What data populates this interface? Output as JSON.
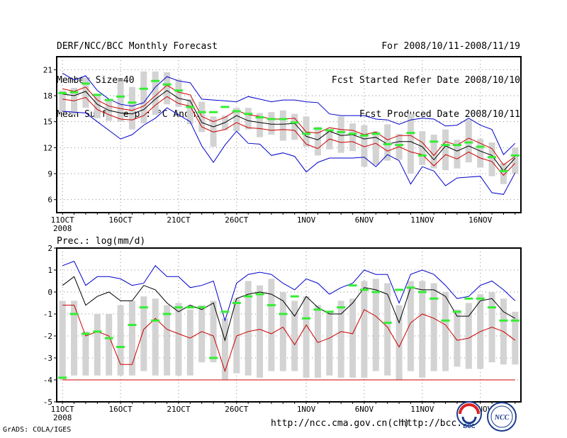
{
  "header": {
    "left": [
      "DERF/NCC/BCC Monthly Forecast",
      "Member Size=40",
      "Mean Surf. Temp.: °C Anom."
    ],
    "right": [
      "For 2008/10/11-2008/11/19",
      "Fcst Started Refer Date 2008/10/10",
      "Fcst Produced Date 2008/10/11"
    ]
  },
  "footer": {
    "grads": "GrADS: COLA/IGES",
    "url1": "http://ncc.cma.gov.cn(ch)",
    "url2": "http://bcc.c"
  },
  "logos": {
    "bcc": "BCC",
    "ncc": "NCC"
  },
  "colors": {
    "max": "#0000cc",
    "min": "#cc0000",
    "mean": "#000000",
    "obs": "#33ee33",
    "box": "#d3d3d3"
  },
  "chart_data": [
    {
      "type": "line",
      "title": "Mean Surf. Temp.: °C Anom.",
      "x_tick_labels": [
        "11OCT",
        "16OCT",
        "21OCT",
        "26OCT",
        "1NOV",
        "6NOV",
        "11NOV",
        "16NOV"
      ],
      "x_year_label": "2008",
      "y_ticks": [
        6,
        9,
        12,
        15,
        18,
        21
      ],
      "ylim": [
        4.5,
        22.5
      ],
      "days": 40,
      "series": [
        {
          "name": "max",
          "values": [
            20.6,
            19.8,
            20.3,
            18.6,
            17.6,
            17.0,
            16.8,
            17.2,
            19.0,
            20.2,
            19.7,
            19.5,
            17.6,
            17.5,
            17.4,
            17.3,
            17.9,
            17.6,
            17.3,
            17.5,
            17.5,
            17.3,
            17.2,
            15.9,
            15.7,
            15.7,
            15.7,
            15.3,
            15.2,
            14.7,
            15.2,
            15.4,
            15.3,
            14.5,
            14.6,
            15.4,
            14.6,
            14.1,
            11.2,
            12.5
          ]
        },
        {
          "name": "upper",
          "values": [
            18.8,
            18.5,
            19.0,
            17.5,
            16.8,
            16.5,
            16.3,
            16.8,
            18.0,
            19.2,
            18.4,
            18.1,
            15.6,
            15.0,
            15.5,
            16.3,
            15.8,
            15.6,
            15.3,
            15.3,
            15.4,
            13.8,
            13.7,
            14.3,
            14.1,
            14.0,
            13.5,
            13.8,
            12.9,
            13.4,
            13.4,
            12.6,
            11.1,
            12.7,
            12.3,
            13.1,
            12.5,
            11.9,
            10.0,
            11.0
          ]
        },
        {
          "name": "mean",
          "values": [
            18.2,
            18.0,
            18.5,
            17.0,
            16.3,
            16.0,
            15.9,
            16.4,
            17.6,
            18.6,
            17.7,
            17.4,
            14.9,
            14.4,
            14.9,
            15.7,
            15.1,
            14.9,
            14.7,
            14.7,
            14.8,
            13.3,
            12.9,
            13.9,
            13.4,
            13.5,
            13.0,
            13.2,
            12.4,
            12.7,
            12.7,
            12.1,
            10.6,
            12.2,
            11.6,
            12.2,
            11.6,
            11.1,
            9.3,
            10.8
          ]
        },
        {
          "name": "lower",
          "values": [
            17.6,
            17.4,
            17.8,
            16.4,
            15.8,
            15.3,
            15.2,
            15.7,
            16.9,
            17.9,
            17.1,
            16.8,
            14.4,
            13.8,
            14.1,
            14.9,
            14.3,
            14.2,
            14.0,
            14.1,
            14.0,
            12.4,
            11.9,
            13.0,
            12.6,
            12.7,
            12.1,
            12.5,
            11.6,
            12.1,
            11.5,
            11.2,
            9.9,
            11.2,
            10.7,
            11.5,
            10.8,
            10.4,
            8.8,
            10.2
          ]
        },
        {
          "name": "min",
          "values": [
            16.2,
            16.1,
            16.0,
            15.0,
            14.0,
            13.0,
            13.5,
            14.6,
            15.4,
            16.6,
            15.8,
            15.0,
            12.2,
            10.3,
            12.3,
            13.9,
            12.5,
            12.4,
            11.1,
            11.4,
            11.0,
            9.2,
            10.3,
            10.8,
            10.8,
            10.8,
            10.9,
            9.8,
            11.2,
            10.5,
            7.8,
            9.8,
            9.3,
            7.6,
            8.5,
            8.6,
            8.7,
            6.8,
            6.6,
            9.1
          ]
        },
        {
          "name": "obs",
          "values": [
            18.3,
            18.4,
            19.4,
            18.1,
            17.5,
            17.9,
            17.2,
            18.8,
            19.7,
            19.3,
            18.6,
            16.7,
            16.1,
            16.1,
            16.7,
            16.2,
            15.9,
            15.5,
            15.3,
            15.3,
            14.9,
            13.6,
            14.2,
            14.0,
            13.8,
            13.6,
            13.4,
            13.6,
            12.4,
            12.3,
            13.7,
            11.1,
            12.7,
            12.3,
            12.3,
            12.6,
            12.1,
            10.9,
            9.3,
            11.1
          ]
        },
        {
          "name": "box_top",
          "values": [
            18.6,
            18.9,
            20.1,
            18.2,
            17.5,
            19.7,
            19.0,
            20.8,
            20.8,
            20.7,
            19.9,
            17.6,
            17.3,
            15.6,
            15.7,
            16.6,
            16.6,
            16.0,
            16.1,
            16.3,
            15.9,
            15.6,
            14.4,
            14.1,
            15.6,
            14.8,
            14.6,
            13.9,
            14.7,
            13.6,
            15.9,
            13.9,
            13.5,
            14.1,
            12.9,
            15.2,
            13.0,
            12.6,
            10.2,
            12.0
          ]
        },
        {
          "name": "box_bottom",
          "values": [
            16.1,
            15.8,
            16.6,
            15.4,
            15.1,
            15.0,
            14.1,
            14.8,
            15.8,
            17.0,
            16.7,
            14.7,
            13.8,
            12.1,
            14.0,
            13.9,
            14.1,
            13.2,
            13.5,
            12.8,
            12.9,
            12.1,
            11.1,
            11.8,
            11.4,
            11.6,
            9.8,
            10.0,
            10.5,
            10.6,
            9.0,
            10.0,
            9.6,
            9.4,
            9.6,
            10.3,
            9.7,
            8.7,
            7.8,
            9.0
          ]
        }
      ]
    },
    {
      "type": "line",
      "title": "Prec.: log(mm/d)",
      "x_tick_labels": [
        "11OCT",
        "16OCT",
        "21OCT",
        "26OCT",
        "1NOV",
        "6NOV",
        "11NOV",
        "16NOV"
      ],
      "x_year_label": "2008",
      "y_ticks": [
        -5,
        -4,
        -3,
        -2,
        -1,
        0,
        1,
        2
      ],
      "ylim": [
        -5,
        2
      ],
      "days": 40,
      "series": [
        {
          "name": "max",
          "values": [
            1.2,
            1.4,
            0.3,
            0.7,
            0.7,
            0.6,
            0.3,
            0.4,
            1.2,
            0.7,
            0.7,
            0.2,
            0.3,
            0.5,
            -1.3,
            0.4,
            0.8,
            0.9,
            0.8,
            0.4,
            0.1,
            0.6,
            0.4,
            -0.1,
            0.2,
            0.4,
            1.0,
            0.8,
            0.8,
            -0.5,
            0.8,
            1.0,
            0.8,
            0.3,
            -0.3,
            -0.2,
            0.3,
            0.5,
            0.1,
            -0.4
          ]
        },
        {
          "name": "mean",
          "values": [
            0.3,
            0.7,
            -0.6,
            -0.2,
            0.0,
            -0.4,
            -0.4,
            0.3,
            0.1,
            -0.5,
            -0.9,
            -0.6,
            -0.8,
            -0.5,
            -2.2,
            -0.3,
            -0.1,
            0.0,
            -0.1,
            -0.4,
            -1.1,
            -0.2,
            -0.7,
            -1.0,
            -1.0,
            -0.5,
            0.2,
            0.1,
            -0.1,
            -1.4,
            0.2,
            0.1,
            0.1,
            -0.2,
            -1.1,
            -1.1,
            -0.4,
            -0.3,
            -0.9,
            -1.2
          ]
        },
        {
          "name": "min",
          "values": [
            -0.6,
            -0.6,
            -2.0,
            -1.8,
            -2.0,
            -3.3,
            -3.3,
            -1.7,
            -1.2,
            -1.7,
            -1.9,
            -2.1,
            -1.8,
            -2.0,
            -3.6,
            -2.0,
            -1.8,
            -1.7,
            -1.9,
            -1.6,
            -2.4,
            -1.5,
            -2.3,
            -2.1,
            -1.8,
            -1.9,
            -0.8,
            -1.1,
            -1.6,
            -2.5,
            -1.4,
            -1.0,
            -1.2,
            -1.5,
            -2.2,
            -2.1,
            -1.8,
            -1.6,
            -1.8,
            -2.2
          ]
        },
        {
          "name": "floor",
          "values": [
            -4.0,
            -4.0,
            -4.0,
            -4.0,
            -4.0,
            -4.0,
            -4.0,
            -4.0,
            -4.0,
            -4.0,
            -4.0,
            -4.0,
            -4.0,
            -4.0,
            -4.0,
            -4.0,
            -4.0,
            -4.0,
            -4.0,
            -4.0,
            -4.0,
            -4.0,
            -4.0,
            -4.0,
            -4.0,
            -4.0,
            -4.0,
            -4.0,
            -4.0,
            -4.0,
            -4.0,
            -4.0,
            -4.0,
            -4.0,
            -4.0,
            -4.0,
            -4.0,
            -4.0,
            -4.0,
            -4.0
          ]
        },
        {
          "name": "obs",
          "values": [
            -3.9,
            -1.0,
            -1.9,
            -1.8,
            -2.1,
            -2.5,
            -1.5,
            -0.7,
            -1.3,
            -1.0,
            -0.7,
            -0.7,
            -0.7,
            -3.0,
            -0.9,
            -0.5,
            -0.2,
            -0.1,
            -0.6,
            -1.0,
            -0.2,
            -1.2,
            -0.8,
            -0.9,
            -0.7,
            0.3,
            0.1,
            0.0,
            -1.4,
            0.1,
            0.2,
            0.0,
            -0.3,
            -1.3,
            -0.9,
            -0.3,
            -0.3,
            -0.7,
            -1.3,
            -1.3
          ]
        },
        {
          "name": "box_top",
          "values": [
            -0.4,
            -0.4,
            -1.8,
            -1.0,
            -1.0,
            -0.6,
            -0.4,
            -0.2,
            -0.3,
            -0.6,
            -0.5,
            -0.8,
            -0.6,
            -0.4,
            -1.2,
            -0.3,
            0.5,
            0.3,
            0.6,
            0.0,
            -0.4,
            -0.2,
            -0.6,
            -0.9,
            -0.4,
            -0.3,
            0.5,
            0.6,
            0.4,
            -0.6,
            0.5,
            0.5,
            0.4,
            0.0,
            -0.8,
            -0.5,
            -0.1,
            0.0,
            -0.3,
            -0.9
          ]
        },
        {
          "name": "box_bottom",
          "values": [
            -4.0,
            -3.8,
            -3.8,
            -3.8,
            -3.8,
            -3.8,
            -3.8,
            -3.6,
            -3.8,
            -3.8,
            -3.8,
            -3.8,
            -3.2,
            -3.2,
            -4.0,
            -3.7,
            -3.8,
            -3.9,
            -3.6,
            -3.6,
            -3.6,
            -3.9,
            -3.9,
            -3.8,
            -3.9,
            -3.9,
            -3.9,
            -3.6,
            -3.8,
            -4.0,
            -3.6,
            -3.9,
            -3.6,
            -3.6,
            -3.4,
            -3.5,
            -3.5,
            -3.2,
            -3.3,
            -3.3
          ]
        }
      ]
    }
  ]
}
